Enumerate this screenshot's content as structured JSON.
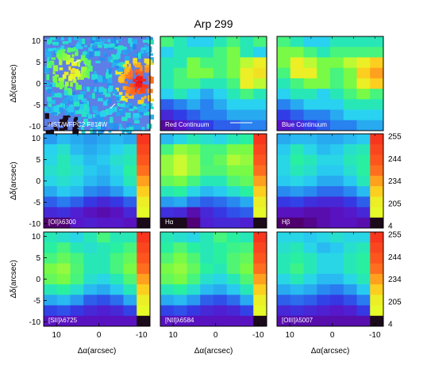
{
  "title": "Arp 299",
  "chart_data": {
    "type": "heatmap",
    "title": "Arp 299",
    "xlabel": "Δα(arcsec)",
    "ylabel": "Δδ(arcsec)",
    "xlim": [
      13,
      -12
    ],
    "ylim": [
      -11,
      11
    ],
    "x_ticks": [
      "10",
      "0",
      "-10"
    ],
    "y_ticks": [
      "10",
      "5",
      "0",
      "-5",
      "-10"
    ],
    "colorbar_ticks": [
      "255",
      "244",
      "234",
      "205",
      "4"
    ],
    "panels": [
      {
        "label": "HST/WFPC2 F814W",
        "kind": "image",
        "row": 0,
        "col": 0
      },
      {
        "label": "Red Continuum",
        "kind": "grid",
        "row": 0,
        "col": 1,
        "scale_bar": true,
        "values": [
          [
            0.55,
            0.5,
            0.45,
            0.45,
            0.5,
            0.55,
            0.5,
            0.55
          ],
          [
            0.45,
            0.5,
            0.5,
            0.5,
            0.55,
            0.6,
            0.5,
            0.45
          ],
          [
            0.5,
            0.5,
            0.6,
            0.55,
            0.55,
            0.6,
            0.65,
            0.7
          ],
          [
            0.5,
            0.55,
            0.6,
            0.6,
            0.55,
            0.6,
            0.7,
            0.72
          ],
          [
            0.5,
            0.55,
            0.55,
            0.5,
            0.5,
            0.55,
            0.7,
            0.65
          ],
          [
            0.45,
            0.5,
            0.45,
            0.4,
            0.45,
            0.5,
            0.55,
            0.5
          ],
          [
            0.3,
            0.35,
            0.4,
            0.35,
            0.4,
            0.45,
            0.45,
            0.45
          ],
          [
            0.2,
            0.25,
            0.3,
            0.35,
            0.35,
            0.4,
            0.4,
            0.4
          ],
          [
            0.1,
            0.15,
            0.2,
            0.25,
            0.3,
            0.3,
            0.35,
            0.35
          ]
        ]
      },
      {
        "label": "Blue Continuum",
        "kind": "grid",
        "row": 0,
        "col": 2,
        "values": [
          [
            0.55,
            0.5,
            0.45,
            0.45,
            0.5,
            0.5,
            0.5,
            0.5
          ],
          [
            0.6,
            0.6,
            0.55,
            0.5,
            0.55,
            0.55,
            0.55,
            0.55
          ],
          [
            0.6,
            0.7,
            0.65,
            0.6,
            0.6,
            0.65,
            0.7,
            0.75
          ],
          [
            0.55,
            0.7,
            0.7,
            0.6,
            0.55,
            0.6,
            0.75,
            0.8
          ],
          [
            0.5,
            0.55,
            0.6,
            0.6,
            0.55,
            0.6,
            0.7,
            0.75
          ],
          [
            0.45,
            0.5,
            0.5,
            0.45,
            0.5,
            0.55,
            0.6,
            0.55
          ],
          [
            0.35,
            0.4,
            0.45,
            0.45,
            0.45,
            0.5,
            0.5,
            0.5
          ],
          [
            0.25,
            0.3,
            0.35,
            0.35,
            0.4,
            0.45,
            0.45,
            0.45
          ],
          [
            0.15,
            0.2,
            0.25,
            0.3,
            0.35,
            0.35,
            0.4,
            0.4
          ]
        ]
      },
      {
        "label": "[OI]λ6300",
        "kind": "grid",
        "row": 1,
        "col": 0,
        "values": [
          [
            0.38,
            0.42,
            0.4,
            0.38,
            0.4,
            0.42,
            0.4,
            0.92
          ],
          [
            0.45,
            0.48,
            0.42,
            0.4,
            0.42,
            0.45,
            0.48,
            0.9
          ],
          [
            0.46,
            0.5,
            0.46,
            0.42,
            0.44,
            0.48,
            0.5,
            0.88
          ],
          [
            0.48,
            0.5,
            0.48,
            0.44,
            0.42,
            0.46,
            0.52,
            0.85
          ],
          [
            0.46,
            0.48,
            0.46,
            0.42,
            0.4,
            0.44,
            0.5,
            0.8
          ],
          [
            0.4,
            0.44,
            0.42,
            0.36,
            0.34,
            0.38,
            0.44,
            0.75
          ],
          [
            0.3,
            0.34,
            0.3,
            0.24,
            0.2,
            0.24,
            0.3,
            0.7
          ],
          [
            0.2,
            0.22,
            0.18,
            0.14,
            0.12,
            0.14,
            0.2,
            0.68
          ],
          [
            0.05,
            0.06,
            0.16,
            0.18,
            0.16,
            0.16,
            0.14,
            0.02
          ]
        ]
      },
      {
        "label": "Hα",
        "kind": "grid",
        "row": 1,
        "col": 1,
        "values": [
          [
            0.42,
            0.46,
            0.5,
            0.48,
            0.46,
            0.5,
            0.52,
            0.92
          ],
          [
            0.55,
            0.62,
            0.6,
            0.55,
            0.55,
            0.6,
            0.6,
            0.9
          ],
          [
            0.62,
            0.66,
            0.62,
            0.55,
            0.58,
            0.64,
            0.62,
            0.88
          ],
          [
            0.62,
            0.66,
            0.62,
            0.56,
            0.56,
            0.6,
            0.6,
            0.85
          ],
          [
            0.58,
            0.6,
            0.55,
            0.5,
            0.5,
            0.56,
            0.58,
            0.8
          ],
          [
            0.5,
            0.52,
            0.46,
            0.42,
            0.44,
            0.48,
            0.52,
            0.75
          ],
          [
            0.38,
            0.4,
            0.34,
            0.3,
            0.32,
            0.36,
            0.4,
            0.7
          ],
          [
            0.22,
            0.2,
            0.12,
            0.2,
            0.24,
            0.28,
            0.3,
            0.68
          ],
          [
            0.02,
            0.02,
            0.06,
            0.18,
            0.2,
            0.2,
            0.18,
            0.02
          ]
        ]
      },
      {
        "label": "Hβ",
        "kind": "grid",
        "row": 1,
        "col": 2,
        "values": [
          [
            0.4,
            0.42,
            0.42,
            0.4,
            0.4,
            0.42,
            0.44,
            0.92
          ],
          [
            0.44,
            0.5,
            0.46,
            0.42,
            0.44,
            0.48,
            0.5,
            0.9
          ],
          [
            0.46,
            0.52,
            0.5,
            0.46,
            0.46,
            0.5,
            0.52,
            0.88
          ],
          [
            0.46,
            0.5,
            0.48,
            0.44,
            0.44,
            0.48,
            0.52,
            0.85
          ],
          [
            0.44,
            0.46,
            0.44,
            0.4,
            0.4,
            0.44,
            0.5,
            0.8
          ],
          [
            0.36,
            0.38,
            0.36,
            0.32,
            0.32,
            0.36,
            0.42,
            0.75
          ],
          [
            0.24,
            0.26,
            0.22,
            0.2,
            0.2,
            0.24,
            0.3,
            0.7
          ],
          [
            0.14,
            0.14,
            0.12,
            0.12,
            0.14,
            0.16,
            0.2,
            0.68
          ],
          [
            0.04,
            0.04,
            0.08,
            0.12,
            0.14,
            0.14,
            0.12,
            0.02
          ]
        ]
      },
      {
        "label": "[SII]λ6725",
        "kind": "grid",
        "row": 2,
        "col": 0,
        "values": [
          [
            0.5,
            0.48,
            0.46,
            0.5,
            0.55,
            0.5,
            0.5,
            0.92
          ],
          [
            0.52,
            0.55,
            0.5,
            0.48,
            0.5,
            0.52,
            0.55,
            0.9
          ],
          [
            0.55,
            0.58,
            0.55,
            0.5,
            0.5,
            0.55,
            0.58,
            0.88
          ],
          [
            0.6,
            0.62,
            0.56,
            0.5,
            0.5,
            0.55,
            0.6,
            0.85
          ],
          [
            0.58,
            0.6,
            0.55,
            0.48,
            0.46,
            0.5,
            0.56,
            0.8
          ],
          [
            0.5,
            0.52,
            0.48,
            0.42,
            0.4,
            0.44,
            0.5,
            0.75
          ],
          [
            0.4,
            0.42,
            0.38,
            0.3,
            0.28,
            0.32,
            0.4,
            0.7
          ],
          [
            0.26,
            0.28,
            0.24,
            0.2,
            0.18,
            0.2,
            0.26,
            0.68
          ],
          [
            0.14,
            0.14,
            0.14,
            0.14,
            0.14,
            0.14,
            0.14,
            0.02
          ]
        ]
      },
      {
        "label": "[NII]λ6584",
        "kind": "grid",
        "row": 2,
        "col": 1,
        "values": [
          [
            0.5,
            0.48,
            0.46,
            0.5,
            0.55,
            0.52,
            0.5,
            0.92
          ],
          [
            0.52,
            0.56,
            0.52,
            0.5,
            0.52,
            0.54,
            0.55,
            0.9
          ],
          [
            0.56,
            0.6,
            0.56,
            0.5,
            0.52,
            0.56,
            0.58,
            0.88
          ],
          [
            0.6,
            0.62,
            0.58,
            0.52,
            0.5,
            0.56,
            0.6,
            0.85
          ],
          [
            0.58,
            0.6,
            0.55,
            0.48,
            0.46,
            0.5,
            0.56,
            0.8
          ],
          [
            0.5,
            0.52,
            0.48,
            0.42,
            0.4,
            0.44,
            0.5,
            0.75
          ],
          [
            0.4,
            0.42,
            0.38,
            0.3,
            0.28,
            0.32,
            0.4,
            0.7
          ],
          [
            0.26,
            0.28,
            0.24,
            0.2,
            0.18,
            0.2,
            0.26,
            0.68
          ],
          [
            0.14,
            0.14,
            0.14,
            0.14,
            0.14,
            0.14,
            0.14,
            0.02
          ]
        ]
      },
      {
        "label": "[OIII]λ5007",
        "kind": "grid",
        "row": 2,
        "col": 2,
        "values": [
          [
            0.46,
            0.46,
            0.44,
            0.46,
            0.48,
            0.46,
            0.46,
            0.92
          ],
          [
            0.48,
            0.5,
            0.46,
            0.42,
            0.44,
            0.48,
            0.5,
            0.9
          ],
          [
            0.5,
            0.52,
            0.5,
            0.46,
            0.46,
            0.5,
            0.52,
            0.88
          ],
          [
            0.5,
            0.54,
            0.5,
            0.46,
            0.46,
            0.5,
            0.52,
            0.85
          ],
          [
            0.46,
            0.5,
            0.46,
            0.42,
            0.42,
            0.46,
            0.5,
            0.8
          ],
          [
            0.4,
            0.42,
            0.4,
            0.36,
            0.34,
            0.38,
            0.44,
            0.75
          ],
          [
            0.3,
            0.32,
            0.3,
            0.26,
            0.24,
            0.28,
            0.34,
            0.7
          ],
          [
            0.2,
            0.22,
            0.2,
            0.18,
            0.16,
            0.18,
            0.24,
            0.68
          ],
          [
            0.12,
            0.12,
            0.12,
            0.12,
            0.12,
            0.12,
            0.12,
            0.02
          ]
        ]
      }
    ]
  }
}
